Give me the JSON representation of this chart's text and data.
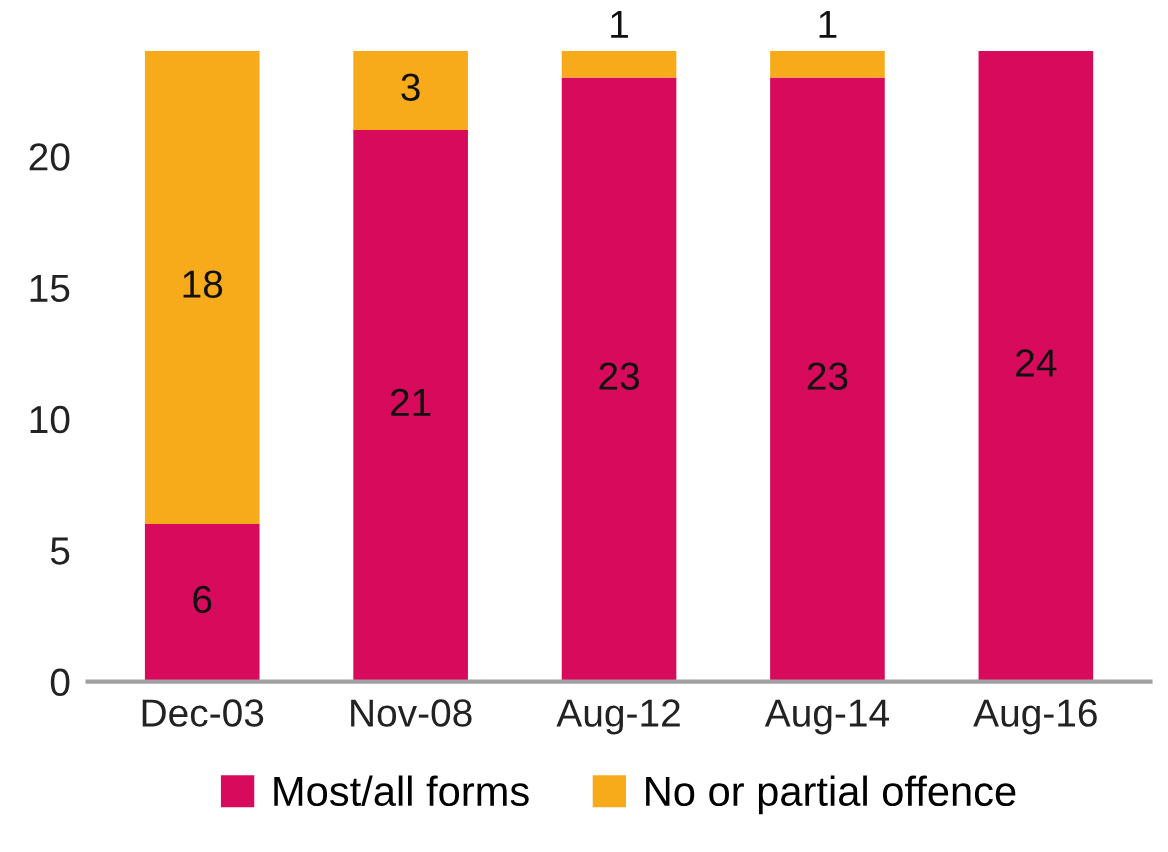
{
  "chart_data": {
    "type": "bar",
    "stacked": true,
    "categories": [
      "Dec-03",
      "Nov-08",
      "Aug-12",
      "Aug-14",
      "Aug-16"
    ],
    "series": [
      {
        "name": "Most/all forms",
        "color": "#d70a5c",
        "values": [
          6,
          21,
          23,
          23,
          24
        ]
      },
      {
        "name": "No or partial offence",
        "color": "#f7ab1b",
        "values": [
          18,
          3,
          1,
          1,
          null
        ]
      }
    ],
    "ylim": [
      0,
      24
    ],
    "yticks": [
      0,
      5,
      10,
      15,
      20
    ],
    "grid": false,
    "legend": "bottom",
    "data_labels": true
  }
}
